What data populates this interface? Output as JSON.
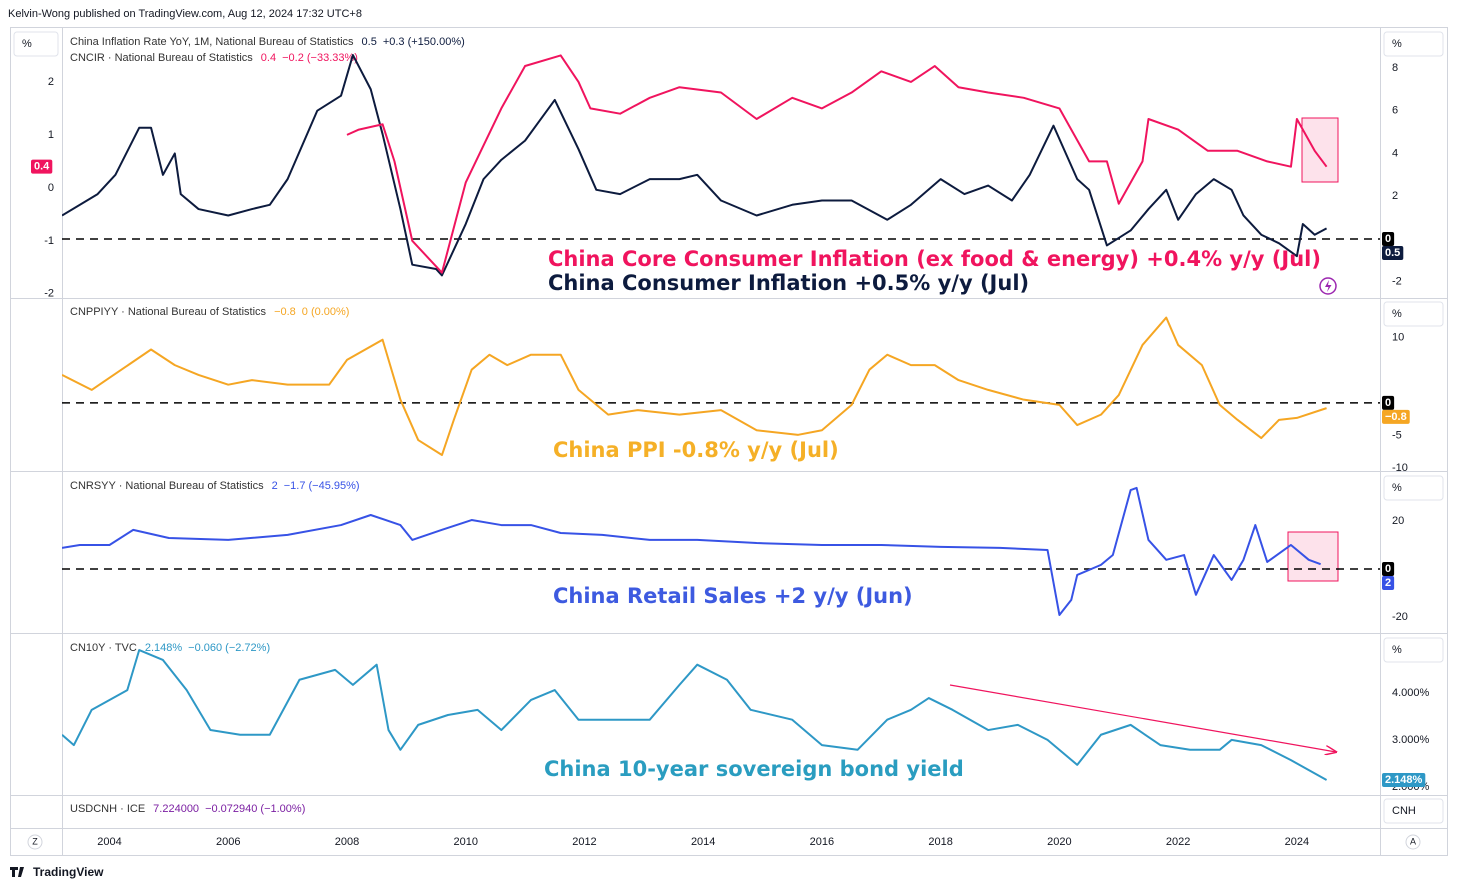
{
  "header": "Kelvin-Wong published on TradingView.com, Aug 12, 2024 17:32 UTC+8",
  "footer": "TradingView",
  "x_axis": {
    "xlim": [
      2003.2,
      2025.4
    ],
    "xticks": [
      2004,
      2006,
      2008,
      2010,
      2012,
      2014,
      2016,
      2018,
      2020,
      2022,
      2024
    ],
    "left_button": "Z",
    "right_button": "A"
  },
  "chart_data": [
    {
      "type": "line",
      "unit": "%",
      "left_unit": "%",
      "y_side": "left",
      "ylim": [
        -2.06,
        2.98
      ],
      "yticks": [
        -2,
        -1,
        0,
        1,
        2
      ],
      "y2lim": [
        -2.71,
        9.77
      ],
      "y2ticks": [
        -2,
        2,
        4,
        6,
        8
      ],
      "hline": {
        "value": 0,
        "axis": "y2"
      },
      "annotations": [
        "China Core Consumer Inflation (ex food & energy) +0.4% y/y (Jul)",
        "China Consumer Inflation +0.5% y/y (Jul)"
      ],
      "series": [
        {
          "name": "China Inflation Rate YoY, 1M, National Bureau of Statistics",
          "last": "0.5",
          "change": "+0.3 (+150.00%)",
          "color": "#0d1b3e",
          "axis": "y2",
          "x": [
            2003.2,
            2003.8,
            2004.1,
            2004.5,
            2004.7,
            2004.9,
            2005.1,
            2005.2,
            2005.5,
            2006.0,
            2006.4,
            2006.7,
            2007.0,
            2007.5,
            2007.9,
            2008.1,
            2008.4,
            2008.6,
            2008.9,
            2009.1,
            2009.5,
            2009.6,
            2010.0,
            2010.3,
            2010.6,
            2011.0,
            2011.5,
            2011.9,
            2012.2,
            2012.6,
            2013.1,
            2013.6,
            2013.9,
            2014.3,
            2014.9,
            2015.5,
            2016.0,
            2016.5,
            2017.1,
            2017.5,
            2018.0,
            2018.4,
            2018.8,
            2019.2,
            2019.5,
            2019.9,
            2020.3,
            2020.5,
            2020.8,
            2021.2,
            2021.5,
            2021.8,
            2022.0,
            2022.3,
            2022.6,
            2022.9,
            2023.1,
            2023.4,
            2023.7,
            2024.0,
            2024.1,
            2024.3,
            2024.5
          ],
          "values": [
            1.1,
            2.1,
            3.0,
            5.2,
            5.2,
            3.0,
            4.0,
            2.1,
            1.4,
            1.1,
            1.4,
            1.6,
            2.8,
            6.0,
            6.7,
            8.6,
            7.0,
            4.9,
            1.4,
            -1.2,
            -1.4,
            -1.7,
            0.7,
            2.8,
            3.7,
            4.6,
            6.5,
            4.2,
            2.3,
            2.1,
            2.8,
            2.8,
            3.0,
            1.8,
            1.1,
            1.6,
            1.8,
            1.8,
            0.9,
            1.6,
            2.8,
            2.1,
            2.5,
            1.8,
            3.0,
            5.3,
            2.8,
            2.3,
            -0.3,
            0.4,
            1.4,
            2.3,
            0.9,
            2.1,
            2.8,
            2.3,
            1.1,
            0.2,
            -0.2,
            -0.8,
            0.7,
            0.2,
            0.5
          ]
        },
        {
          "name": "CNCIR · National Bureau of Statistics",
          "last": "0.4",
          "change": "−0.2 (−33.33%)",
          "color": "#f0145e",
          "axis": "y",
          "x": [
            2008.0,
            2008.2,
            2008.6,
            2008.8,
            2009.1,
            2009.6,
            2010.0,
            2010.3,
            2010.6,
            2011.0,
            2011.6,
            2011.9,
            2012.1,
            2012.6,
            2013.1,
            2013.6,
            2014.3,
            2014.9,
            2015.5,
            2016.0,
            2016.5,
            2017.0,
            2017.5,
            2017.9,
            2018.3,
            2018.8,
            2019.4,
            2020.0,
            2020.5,
            2020.8,
            2021.0,
            2021.4,
            2021.5,
            2022.0,
            2022.5,
            2023.0,
            2023.5,
            2023.9,
            2024.0,
            2024.3,
            2024.5
          ],
          "values": [
            1.0,
            1.1,
            1.2,
            0.5,
            -1.0,
            -1.6,
            0.1,
            0.8,
            1.5,
            2.3,
            2.5,
            2.0,
            1.5,
            1.4,
            1.7,
            1.9,
            1.8,
            1.3,
            1.7,
            1.5,
            1.8,
            2.2,
            2.0,
            2.3,
            1.9,
            1.8,
            1.7,
            1.5,
            0.5,
            0.5,
            -0.3,
            0.5,
            1.3,
            1.1,
            0.7,
            0.7,
            0.5,
            0.4,
            1.3,
            0.7,
            0.4
          ]
        }
      ]
    },
    {
      "type": "line",
      "unit": "%",
      "y_side": "right",
      "ylim": [
        -10.3,
        15.8
      ],
      "yticks": [
        -10,
        -5,
        10
      ],
      "hline": {
        "value": 0,
        "axis": "y"
      },
      "annotations": [
        "China PPI -0.8% y/y (Jul)"
      ],
      "series": [
        {
          "name": "CNPPIYY · National Bureau of Statistics",
          "last": "−0.8",
          "change": "0 (0.00%)",
          "color": "#f5a623",
          "axis": "y",
          "x": [
            2003.2,
            2003.7,
            2004.2,
            2004.7,
            2005.1,
            2005.5,
            2006.0,
            2006.4,
            2007.0,
            2007.7,
            2008.0,
            2008.6,
            2008.9,
            2009.2,
            2009.6,
            2009.8,
            2010.1,
            2010.4,
            2010.7,
            2011.1,
            2011.6,
            2011.9,
            2012.4,
            2012.9,
            2013.6,
            2014.3,
            2014.9,
            2015.6,
            2016.0,
            2016.5,
            2016.8,
            2017.1,
            2017.5,
            2017.9,
            2018.3,
            2018.8,
            2019.4,
            2020.0,
            2020.3,
            2020.7,
            2021.0,
            2021.4,
            2021.8,
            2022.0,
            2022.4,
            2022.7,
            2023.0,
            2023.4,
            2023.7,
            2024.0,
            2024.5
          ],
          "values": [
            4.3,
            2.0,
            5.1,
            8.2,
            5.8,
            4.3,
            2.8,
            3.5,
            2.8,
            2.8,
            6.6,
            9.7,
            0.5,
            -5.7,
            -8.0,
            -2.6,
            5.1,
            7.4,
            5.8,
            7.4,
            7.4,
            2.0,
            -1.8,
            -1.1,
            -1.8,
            -1.1,
            -4.2,
            -4.9,
            -4.2,
            -0.3,
            5.1,
            7.4,
            5.8,
            5.8,
            3.5,
            2.0,
            0.5,
            -0.3,
            -3.4,
            -1.8,
            1.2,
            8.9,
            13.1,
            8.9,
            5.8,
            -0.3,
            -2.6,
            -5.4,
            -2.6,
            -2.3,
            -0.8
          ]
        }
      ]
    },
    {
      "type": "line",
      "unit": "%",
      "y_side": "right",
      "ylim": [
        -26.3,
        39.6
      ],
      "yticks": [
        -20,
        20
      ],
      "hline": {
        "value": 0,
        "axis": "y"
      },
      "annotations": [
        "China Retail Sales +2 y/y (Jun)"
      ],
      "series": [
        {
          "name": "CNRSYY · National Bureau of Statistics",
          "last": "2",
          "change": "−1.7 (−45.95%)",
          "color": "#3752e6",
          "axis": "y",
          "x": [
            2003.2,
            2003.5,
            2004.0,
            2004.4,
            2005.0,
            2006.0,
            2007.0,
            2007.9,
            2008.4,
            2008.9,
            2009.1,
            2009.6,
            2010.1,
            2010.6,
            2011.1,
            2011.6,
            2012.3,
            2013.1,
            2013.9,
            2014.9,
            2016.0,
            2017.0,
            2018.0,
            2019.0,
            2019.8,
            2020.0,
            2020.2,
            2020.3,
            2020.7,
            2020.9,
            2021.2,
            2021.3,
            2021.5,
            2021.8,
            2022.1,
            2022.3,
            2022.6,
            2022.9,
            2023.1,
            2023.3,
            2023.5,
            2023.9,
            2024.2,
            2024.4
          ],
          "values": [
            8.8,
            10,
            10,
            16.3,
            12.9,
            12.1,
            14.2,
            18.3,
            22.5,
            18.3,
            12.1,
            16.3,
            20.4,
            18.3,
            18.3,
            15,
            14.2,
            12.1,
            12.1,
            10.8,
            10,
            10,
            9.2,
            8.8,
            7.9,
            -19.2,
            -12.9,
            -2.5,
            1.7,
            5.8,
            32.9,
            33.8,
            12.1,
            3.8,
            5.8,
            -10.8,
            5.8,
            -4.6,
            3.8,
            18.3,
            2.9,
            10,
            3.8,
            2
          ]
        }
      ]
    },
    {
      "type": "line",
      "unit": "%",
      "y_side": "right",
      "ylim": [
        1.85,
        5.21
      ],
      "yticks": [
        {
          "value": 2,
          "label": "2.000%"
        },
        {
          "value": 3,
          "label": "3.000%"
        },
        {
          "value": 4,
          "label": "4.000%"
        }
      ],
      "annotations": [
        "China 10-year sovereign bond yield"
      ],
      "series": [
        {
          "name": "CN10Y · TVC",
          "last": "2.148%",
          "change": "−0.060 (−2.72%)",
          "color": "#2e98c6",
          "axis": "y",
          "x": [
            2003.2,
            2003.4,
            2003.7,
            2004.0,
            2004.3,
            2004.5,
            2004.9,
            2005.3,
            2005.7,
            2006.2,
            2006.7,
            2007.2,
            2007.8,
            2008.1,
            2008.5,
            2008.7,
            2008.9,
            2009.2,
            2009.7,
            2010.2,
            2010.6,
            2011.1,
            2011.5,
            2011.9,
            2012.4,
            2013.1,
            2013.6,
            2013.9,
            2014.4,
            2014.8,
            2015.5,
            2016.0,
            2016.6,
            2017.1,
            2017.5,
            2017.8,
            2018.2,
            2018.8,
            2019.3,
            2019.8,
            2020.3,
            2020.7,
            2021.2,
            2021.7,
            2022.2,
            2022.7,
            2022.9,
            2023.4,
            2023.9,
            2024.5
          ],
          "values": [
            3.11,
            2.89,
            3.64,
            3.85,
            4.06,
            4.91,
            4.7,
            4.06,
            3.21,
            3.11,
            3.11,
            4.28,
            4.49,
            4.17,
            4.6,
            3.21,
            2.79,
            3.32,
            3.53,
            3.64,
            3.21,
            3.85,
            4.06,
            3.43,
            3.43,
            3.43,
            4.17,
            4.6,
            4.28,
            3.64,
            3.43,
            2.89,
            2.79,
            3.43,
            3.64,
            3.89,
            3.64,
            3.21,
            3.32,
            3.0,
            2.47,
            3.11,
            3.32,
            2.89,
            2.79,
            2.79,
            3.0,
            2.89,
            2.57,
            2.148
          ]
        }
      ]
    },
    {
      "type": "empty",
      "unit": "CNH",
      "legend": {
        "name": "USDCNH · ICE",
        "last": "7.224000",
        "change": "−0.072940 (−1.00%)",
        "color": "#7b1fa2"
      }
    }
  ]
}
